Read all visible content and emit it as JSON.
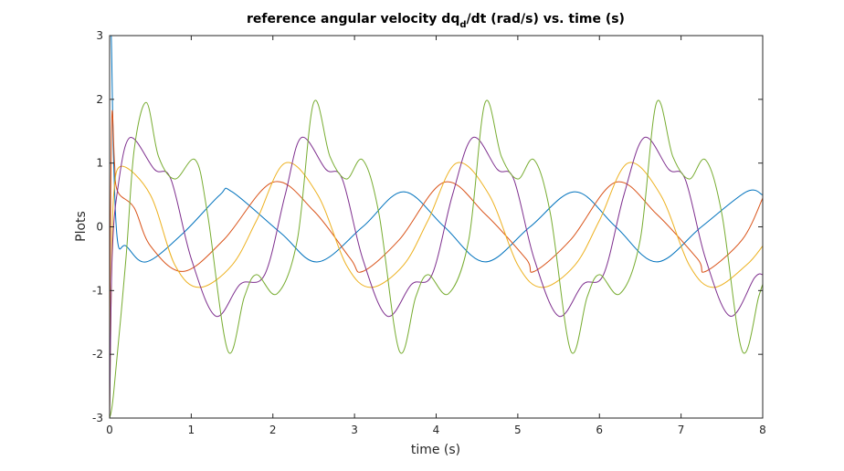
{
  "chart_data": {
    "type": "line",
    "title": "reference angular velocity dq",
    "title_sub": "d",
    "title_tail": "/dt (rad/s) vs. time (s)",
    "xlabel": "time (s)",
    "ylabel": "Plots",
    "xlim": [
      0,
      8
    ],
    "ylim": [
      -3,
      3
    ],
    "xticks": [
      "0",
      "1",
      "2",
      "3",
      "4",
      "5",
      "6",
      "7",
      "8"
    ],
    "yticks": [
      "-3",
      "-2",
      "-1",
      "0",
      "1",
      "2",
      "3"
    ],
    "grid": false,
    "legend": "none",
    "period_s": 2.1,
    "series": [
      {
        "color": "#0072BD",
        "points": [
          [
            0,
            3.0
          ],
          [
            0.02,
            3.0
          ],
          [
            0.05,
            1.0
          ],
          [
            0.1,
            -0.25
          ],
          [
            0.2,
            -0.3
          ],
          [
            0.45,
            -0.55
          ],
          [
            0.9,
            -0.1
          ],
          [
            1.35,
            0.5
          ],
          [
            1.5,
            0.55
          ],
          [
            2.1,
            -0.1
          ],
          [
            2.55,
            -0.55
          ],
          [
            3.1,
            0.0
          ],
          [
            3.6,
            0.55
          ],
          [
            4.1,
            0.0
          ],
          [
            4.6,
            -0.55
          ],
          [
            5.15,
            0.0
          ],
          [
            5.7,
            0.55
          ],
          [
            6.2,
            0.0
          ],
          [
            6.7,
            -0.55
          ],
          [
            7.25,
            0.0
          ],
          [
            7.8,
            0.55
          ],
          [
            8.0,
            0.5
          ]
        ]
      },
      {
        "color": "#D95319",
        "points": [
          [
            0,
            -2.5
          ],
          [
            0.01,
            0.0
          ],
          [
            0.03,
            1.8
          ],
          [
            0.06,
            1.0
          ],
          [
            0.1,
            0.55
          ],
          [
            0.3,
            0.3
          ],
          [
            0.5,
            -0.3
          ],
          [
            0.9,
            -0.7
          ],
          [
            1.4,
            -0.2
          ],
          [
            2.0,
            0.7
          ],
          [
            2.5,
            0.25
          ],
          [
            2.95,
            -0.5
          ],
          [
            3.1,
            -0.7
          ],
          [
            3.55,
            -0.2
          ],
          [
            4.1,
            0.7
          ],
          [
            4.6,
            0.2
          ],
          [
            5.1,
            -0.5
          ],
          [
            5.2,
            -0.7
          ],
          [
            5.65,
            -0.2
          ],
          [
            6.2,
            0.7
          ],
          [
            6.7,
            0.2
          ],
          [
            7.2,
            -0.5
          ],
          [
            7.3,
            -0.7
          ],
          [
            7.75,
            -0.2
          ],
          [
            8.0,
            0.45
          ]
        ]
      },
      {
        "color": "#EDB120",
        "points": [
          [
            0,
            -3.0
          ],
          [
            0.02,
            -1.0
          ],
          [
            0.05,
            0.5
          ],
          [
            0.15,
            0.95
          ],
          [
            0.5,
            0.5
          ],
          [
            0.8,
            -0.6
          ],
          [
            1.1,
            -0.95
          ],
          [
            1.5,
            -0.6
          ],
          [
            1.8,
            0.1
          ],
          [
            2.15,
            1.0
          ],
          [
            2.55,
            0.5
          ],
          [
            2.9,
            -0.6
          ],
          [
            3.2,
            -0.95
          ],
          [
            3.6,
            -0.6
          ],
          [
            3.9,
            0.1
          ],
          [
            4.25,
            1.0
          ],
          [
            4.65,
            0.5
          ],
          [
            5.0,
            -0.6
          ],
          [
            5.3,
            -0.95
          ],
          [
            5.7,
            -0.6
          ],
          [
            6.0,
            0.1
          ],
          [
            6.35,
            1.0
          ],
          [
            6.75,
            0.5
          ],
          [
            7.1,
            -0.6
          ],
          [
            7.4,
            -0.95
          ],
          [
            7.8,
            -0.6
          ],
          [
            8.0,
            -0.3
          ]
        ]
      },
      {
        "color": "#7E2F8E",
        "points": [
          [
            0,
            -3.0
          ],
          [
            0.03,
            -0.5
          ],
          [
            0.1,
            0.6
          ],
          [
            0.25,
            1.4
          ],
          [
            0.55,
            0.9
          ],
          [
            0.75,
            0.75
          ],
          [
            1.0,
            -0.5
          ],
          [
            1.3,
            -1.4
          ],
          [
            1.6,
            -0.9
          ],
          [
            1.9,
            -0.75
          ],
          [
            2.15,
            0.5
          ],
          [
            2.35,
            1.4
          ],
          [
            2.65,
            0.9
          ],
          [
            2.85,
            0.75
          ],
          [
            3.1,
            -0.5
          ],
          [
            3.4,
            -1.4
          ],
          [
            3.7,
            -0.9
          ],
          [
            3.95,
            -0.75
          ],
          [
            4.2,
            0.5
          ],
          [
            4.45,
            1.4
          ],
          [
            4.75,
            0.9
          ],
          [
            4.95,
            0.75
          ],
          [
            5.2,
            -0.5
          ],
          [
            5.5,
            -1.4
          ],
          [
            5.8,
            -0.9
          ],
          [
            6.05,
            -0.75
          ],
          [
            6.3,
            0.5
          ],
          [
            6.55,
            1.4
          ],
          [
            6.85,
            0.9
          ],
          [
            7.05,
            0.75
          ],
          [
            7.3,
            -0.5
          ],
          [
            7.6,
            -1.4
          ],
          [
            7.9,
            -0.8
          ],
          [
            8.0,
            -0.75
          ]
        ]
      },
      {
        "color": "#77AC30",
        "points": [
          [
            0,
            -3.0
          ],
          [
            0.05,
            -2.6
          ],
          [
            0.2,
            -0.5
          ],
          [
            0.3,
            1.2
          ],
          [
            0.45,
            1.95
          ],
          [
            0.6,
            1.1
          ],
          [
            0.8,
            0.75
          ],
          [
            1.05,
            1.05
          ],
          [
            1.2,
            0.2
          ],
          [
            1.45,
            -1.95
          ],
          [
            1.65,
            -1.1
          ],
          [
            1.8,
            -0.75
          ],
          [
            2.05,
            -1.05
          ],
          [
            2.3,
            -0.2
          ],
          [
            2.5,
            1.95
          ],
          [
            2.7,
            1.1
          ],
          [
            2.9,
            0.75
          ],
          [
            3.1,
            1.05
          ],
          [
            3.3,
            0.2
          ],
          [
            3.55,
            -1.95
          ],
          [
            3.75,
            -1.1
          ],
          [
            3.9,
            -0.75
          ],
          [
            4.15,
            -1.05
          ],
          [
            4.4,
            -0.2
          ],
          [
            4.6,
            1.95
          ],
          [
            4.8,
            1.1
          ],
          [
            5.0,
            0.75
          ],
          [
            5.2,
            1.05
          ],
          [
            5.4,
            0.2
          ],
          [
            5.65,
            -1.95
          ],
          [
            5.85,
            -1.1
          ],
          [
            6.0,
            -0.75
          ],
          [
            6.25,
            -1.05
          ],
          [
            6.5,
            -0.2
          ],
          [
            6.7,
            1.95
          ],
          [
            6.9,
            1.1
          ],
          [
            7.1,
            0.75
          ],
          [
            7.3,
            1.05
          ],
          [
            7.5,
            0.2
          ],
          [
            7.75,
            -1.95
          ],
          [
            7.95,
            -1.1
          ],
          [
            8.0,
            -0.9
          ]
        ]
      }
    ]
  }
}
